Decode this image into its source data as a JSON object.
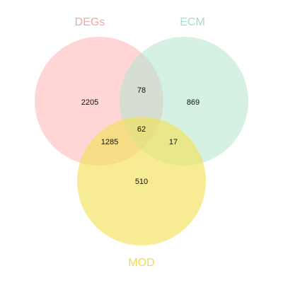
{
  "sets": [
    {
      "id": "degs",
      "label": "DEGs",
      "color": "#ffb3b3",
      "text_color": "#f4a6a6"
    },
    {
      "id": "ecm",
      "label": "ECM",
      "color": "#b3e6cc",
      "text_color": "#a8dcc6"
    },
    {
      "id": "mod",
      "label": "MOD",
      "color": "#f2e25a",
      "text_color": "#eedc55"
    }
  ],
  "regions": {
    "degs_only": "2205",
    "ecm_only": "869",
    "mod_only": "510",
    "degs_ecm": "78",
    "degs_mod": "1285",
    "ecm_mod": "17",
    "all_three": "62"
  }
}
